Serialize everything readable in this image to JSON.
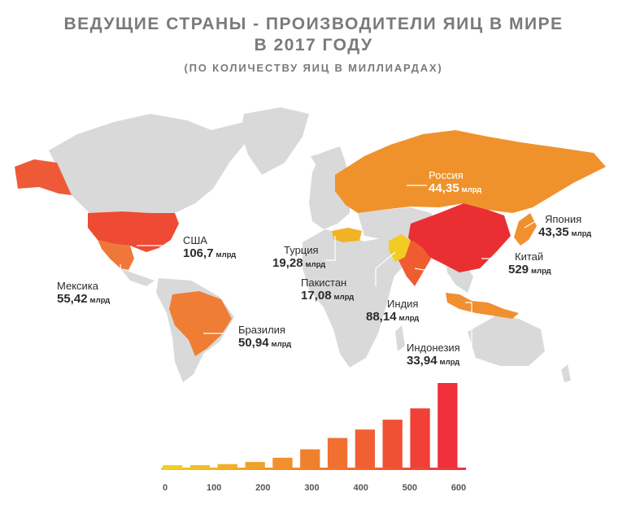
{
  "header": {
    "title_line1": "ВЕДУЩИЕ СТРАНЫ - ПРОИЗВОДИТЕЛИ ЯИЦ В МИРЕ",
    "title_line2": "В 2017 ГОДУ",
    "subtitle": "(ПО КОЛИЧЕСТВУ ЯИЦ В МИЛЛИАРДАХ)"
  },
  "unit": "млрд",
  "colors": {
    "land": "#d9d9d9",
    "gradient_low": "#f2d022",
    "gradient_high": "#f0303a",
    "leader_line": "#ffffff"
  },
  "chart_data": {
    "type": "choropleth-map",
    "series": [
      {
        "name": "США",
        "value": "106,7",
        "number": 106.7
      },
      {
        "name": "Мексика",
        "value": "55,42",
        "number": 55.42
      },
      {
        "name": "Бразилия",
        "value": "50,94",
        "number": 50.94
      },
      {
        "name": "Турция",
        "value": "19,28",
        "number": 19.28
      },
      {
        "name": "Пакистан",
        "value": "17,08",
        "number": 17.08
      },
      {
        "name": "Индия",
        "value": "88,14",
        "number": 88.14
      },
      {
        "name": "Россия",
        "value": "44,35",
        "number": 44.35
      },
      {
        "name": "Япония",
        "value": "43,35",
        "number": 43.35
      },
      {
        "name": "Китай",
        "value": "529",
        "number": 529
      },
      {
        "name": "Индонезия",
        "value": "33,94",
        "number": 33.94
      }
    ],
    "legend_scale": {
      "type": "bar",
      "ticks": [
        0,
        100,
        200,
        300,
        400,
        500,
        600
      ],
      "steps": [
        5,
        15,
        25,
        40,
        70,
        130,
        210,
        270,
        340,
        420,
        600
      ],
      "ylim": [
        0,
        600
      ]
    }
  }
}
